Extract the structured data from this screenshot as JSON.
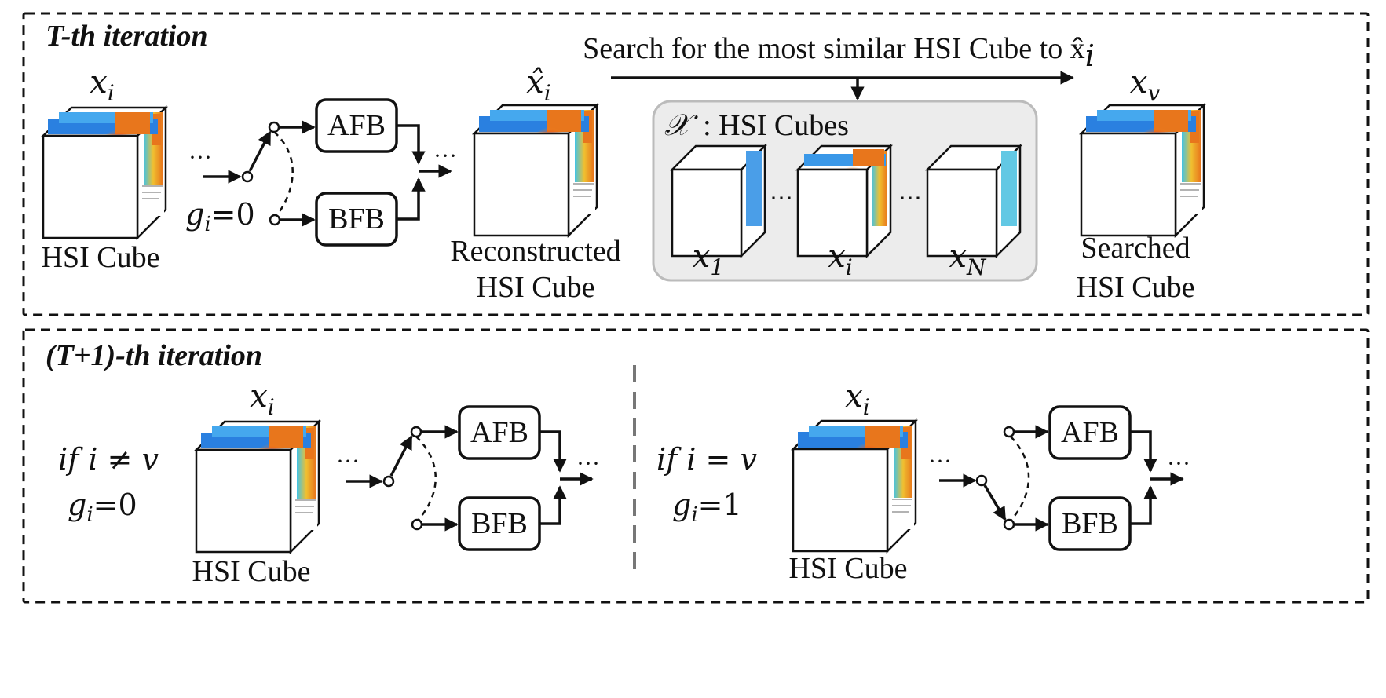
{
  "panels": {
    "top_title": "T-th iteration",
    "bottom_title": "(T+1)-th iteration"
  },
  "blocks": {
    "afb": "AFB",
    "bfb": "BFB"
  },
  "labels": {
    "hsi_cube": "HSI Cube",
    "reconstructed_line1": "Reconstructed",
    "reconstructed_line2": "HSI Cube",
    "searched_line1": "Searched",
    "searched_line2": "HSI Cube",
    "search_caption": "Search for the most similar HSI Cube to x̂",
    "search_caption_sub": "i",
    "set_name": "𝒳",
    "set_caption": ": HSI Cubes",
    "ellipsis": "⋯",
    "ellipsis_dots": "···"
  },
  "math": {
    "x": "x",
    "x_hat": "x̂",
    "sub_i": "i",
    "sub_v": "v",
    "sub_1": "1",
    "sub_N": "N",
    "gate_top": "=0",
    "cond_neq": "if  i ≠ v",
    "gate_neq": "=0",
    "cond_eq": "if  i = v",
    "gate_eq": "=1",
    "g": "g"
  },
  "colors": {
    "heat_low": "#1c3fc6",
    "heat_mid": "#3fc3e8",
    "heat_high": "#e8281c",
    "set_background": "#ececec"
  }
}
